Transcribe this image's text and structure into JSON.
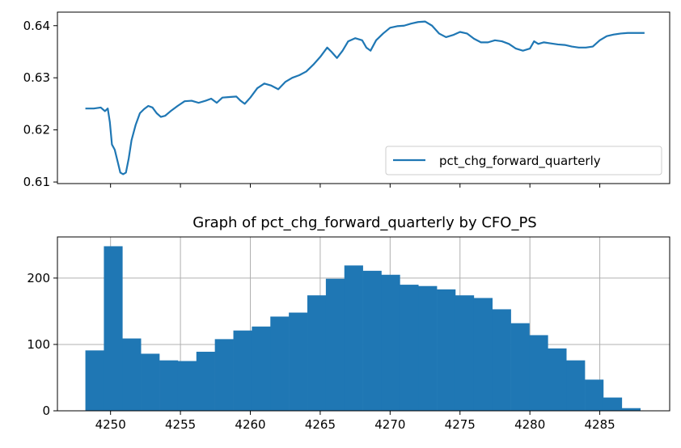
{
  "chart_data": [
    {
      "type": "line",
      "title": "",
      "xlabel": "",
      "ylabel": "",
      "xlim": [
        4246.2,
        4290.0
      ],
      "ylim": [
        0.6097,
        0.6426
      ],
      "x_ticks_labeled": false,
      "x_ticks": [
        4250,
        4255,
        4260,
        4265,
        4270,
        4275,
        4280,
        4285
      ],
      "y_ticks": [
        0.61,
        0.62,
        0.63,
        0.64
      ],
      "y_tick_labels": [
        "0.61",
        "0.62",
        "0.63",
        "0.64"
      ],
      "grid": false,
      "legend_position": "lower-right",
      "line_color": "#1f77b4",
      "series": [
        {
          "name": "pct_chg_forward_quarterly",
          "points": [
            [
              4248.2,
              0.6241
            ],
            [
              4248.8,
              0.6241
            ],
            [
              4249.3,
              0.6243
            ],
            [
              4249.6,
              0.6236
            ],
            [
              4249.8,
              0.6241
            ],
            [
              4249.95,
              0.6215
            ],
            [
              4250.1,
              0.6172
            ],
            [
              4250.3,
              0.6162
            ],
            [
              4250.5,
              0.614
            ],
            [
              4250.7,
              0.6118
            ],
            [
              4250.9,
              0.6115
            ],
            [
              4251.1,
              0.6118
            ],
            [
              4251.3,
              0.6145
            ],
            [
              4251.5,
              0.618
            ],
            [
              4251.8,
              0.621
            ],
            [
              4252.1,
              0.6232
            ],
            [
              4252.4,
              0.624
            ],
            [
              4252.7,
              0.6246
            ],
            [
              4253.0,
              0.6243
            ],
            [
              4253.3,
              0.6232
            ],
            [
              4253.6,
              0.6225
            ],
            [
              4253.9,
              0.6227
            ],
            [
              4254.3,
              0.6236
            ],
            [
              4254.8,
              0.6246
            ],
            [
              4255.3,
              0.6255
            ],
            [
              4255.8,
              0.6256
            ],
            [
              4256.3,
              0.6252
            ],
            [
              4256.8,
              0.6256
            ],
            [
              4257.2,
              0.626
            ],
            [
              4257.6,
              0.6252
            ],
            [
              4258.0,
              0.6262
            ],
            [
              4258.5,
              0.6263
            ],
            [
              4259.0,
              0.6264
            ],
            [
              4259.3,
              0.6256
            ],
            [
              4259.6,
              0.625
            ],
            [
              4260.0,
              0.6262
            ],
            [
              4260.5,
              0.628
            ],
            [
              4261.0,
              0.6289
            ],
            [
              4261.5,
              0.6285
            ],
            [
              4262.0,
              0.6278
            ],
            [
              4262.5,
              0.6292
            ],
            [
              4263.0,
              0.63
            ],
            [
              4263.5,
              0.6305
            ],
            [
              4264.0,
              0.6312
            ],
            [
              4264.5,
              0.6325
            ],
            [
              4265.0,
              0.634
            ],
            [
              4265.5,
              0.6358
            ],
            [
              4265.8,
              0.635
            ],
            [
              4266.2,
              0.6338
            ],
            [
              4266.6,
              0.6352
            ],
            [
              4267.0,
              0.637
            ],
            [
              4267.5,
              0.6376
            ],
            [
              4268.0,
              0.6372
            ],
            [
              4268.3,
              0.6358
            ],
            [
              4268.6,
              0.6352
            ],
            [
              4269.0,
              0.6372
            ],
            [
              4269.5,
              0.6385
            ],
            [
              4270.0,
              0.6396
            ],
            [
              4270.5,
              0.6399
            ],
            [
              4271.0,
              0.64
            ],
            [
              4271.5,
              0.6404
            ],
            [
              4272.0,
              0.6407
            ],
            [
              4272.5,
              0.6408
            ],
            [
              4273.0,
              0.64
            ],
            [
              4273.5,
              0.6385
            ],
            [
              4274.0,
              0.6378
            ],
            [
              4274.5,
              0.6382
            ],
            [
              4275.0,
              0.6388
            ],
            [
              4275.5,
              0.6385
            ],
            [
              4276.0,
              0.6375
            ],
            [
              4276.5,
              0.6368
            ],
            [
              4277.0,
              0.6368
            ],
            [
              4277.5,
              0.6372
            ],
            [
              4278.0,
              0.637
            ],
            [
              4278.5,
              0.6365
            ],
            [
              4279.0,
              0.6356
            ],
            [
              4279.5,
              0.6352
            ],
            [
              4280.0,
              0.6356
            ],
            [
              4280.3,
              0.637
            ],
            [
              4280.6,
              0.6365
            ],
            [
              4281.0,
              0.6368
            ],
            [
              4281.5,
              0.6366
            ],
            [
              4282.0,
              0.6364
            ],
            [
              4282.5,
              0.6363
            ],
            [
              4283.0,
              0.636
            ],
            [
              4283.5,
              0.6358
            ],
            [
              4284.0,
              0.6358
            ],
            [
              4284.5,
              0.636
            ],
            [
              4285.0,
              0.6372
            ],
            [
              4285.5,
              0.638
            ],
            [
              4286.0,
              0.6383
            ],
            [
              4286.5,
              0.6385
            ],
            [
              4287.0,
              0.6386
            ],
            [
              4287.5,
              0.6386
            ],
            [
              4288.0,
              0.6386
            ],
            [
              4288.2,
              0.6386
            ]
          ]
        }
      ]
    },
    {
      "type": "bar",
      "title": "Graph of pct_chg_forward_quarterly by CFO_PS",
      "xlabel": "",
      "ylabel": "",
      "xlim": [
        4246.2,
        4290.0
      ],
      "ylim": [
        0,
        262
      ],
      "x_ticks": [
        4250,
        4255,
        4260,
        4265,
        4270,
        4275,
        4280,
        4285
      ],
      "x_tick_labels": [
        "4250",
        "4255",
        "4260",
        "4265",
        "4270",
        "4275",
        "4280",
        "4285"
      ],
      "y_ticks": [
        0,
        100,
        200
      ],
      "y_tick_labels": [
        "0",
        "100",
        "200"
      ],
      "grid": true,
      "bar_color": "#1f77b4",
      "grid_color": "#b0b0b0",
      "bins_start": 4248.2,
      "bin_width": 1.3233,
      "values": [
        91,
        248,
        109,
        86,
        76,
        75,
        89,
        108,
        121,
        127,
        142,
        148,
        174,
        199,
        219,
        211,
        205,
        190,
        188,
        183,
        174,
        170,
        153,
        132,
        114,
        94,
        76,
        47,
        20,
        4
      ]
    }
  ]
}
